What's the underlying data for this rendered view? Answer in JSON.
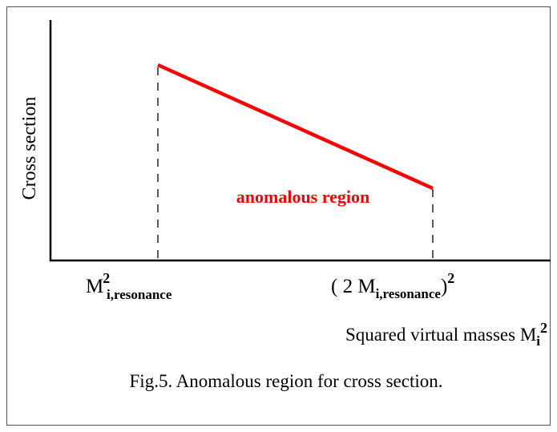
{
  "y_axis_label": "Cross section",
  "annotation": "anomalous region",
  "x_tick_labels": [
    {
      "base": "M",
      "sub": "i,resonance",
      "sup": "2"
    },
    {
      "open": "( 2 M",
      "sub": "i,resonance",
      "close": ")",
      "sup": "2"
    }
  ],
  "x_axis_label": {
    "text": "Squared virtual masses M",
    "sub": "i",
    "sup": "2"
  },
  "caption": "Fig.5. Anomalous region for cross section."
}
